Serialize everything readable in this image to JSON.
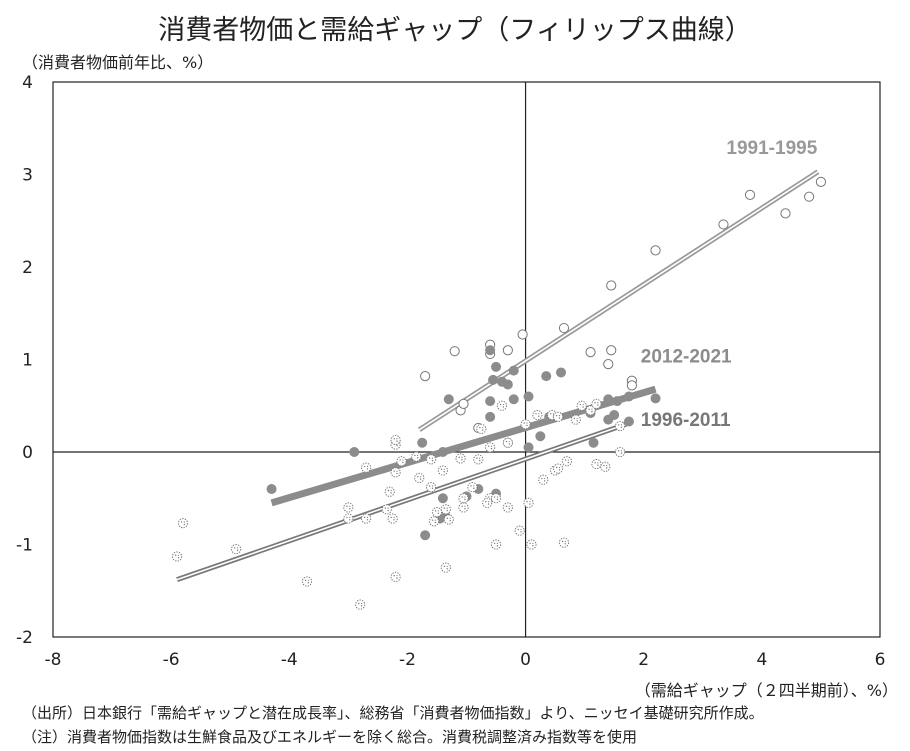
{
  "chart_data": {
    "type": "scatter",
    "title": "消費者物価と需給ギャップ（フィリップス曲線）",
    "ylabel": "（消費者物価前年比、%）",
    "xlabel": "（需給ギャップ（２四半期前）、%）",
    "xlim": [
      -8,
      6
    ],
    "ylim": [
      -2,
      4
    ],
    "xticks": [
      "-8",
      "-6",
      "-4",
      "-2",
      "0",
      "2",
      "4",
      "6"
    ],
    "yticks": [
      "-2",
      "-1",
      "0",
      "1",
      "2",
      "3",
      "4"
    ],
    "grid": false,
    "series": [
      {
        "name": "1991-1995",
        "color": "#999999",
        "marker": "open-circle",
        "points": [
          [
            -1.7,
            0.82
          ],
          [
            -1.2,
            1.09
          ],
          [
            -0.6,
            1.16
          ],
          [
            -0.6,
            1.06
          ],
          [
            -0.3,
            1.1
          ],
          [
            -0.05,
            1.27
          ],
          [
            0.65,
            1.34
          ],
          [
            -1.1,
            0.45
          ],
          [
            -1.05,
            0.52
          ],
          [
            1.45,
            1.8
          ],
          [
            2.2,
            2.18
          ],
          [
            3.35,
            2.46
          ],
          [
            3.8,
            2.78
          ],
          [
            4.4,
            2.58
          ],
          [
            4.8,
            2.76
          ],
          [
            5.0,
            2.92
          ],
          [
            1.1,
            1.08
          ],
          [
            1.45,
            1.1
          ],
          [
            1.4,
            0.95
          ],
          [
            1.8,
            0.77
          ],
          [
            1.8,
            0.72
          ],
          [
            -0.8,
            0.26
          ]
        ],
        "trend": [
          [
            -1.8,
            0.24
          ],
          [
            4.95,
            3.03
          ]
        ],
        "trend_style": "double"
      },
      {
        "name": "2012-2021",
        "color": "#8c8c8c",
        "marker": "filled-circle",
        "points": [
          [
            -4.3,
            -0.4
          ],
          [
            -2.9,
            0.0
          ],
          [
            -1.75,
            0.1
          ],
          [
            -0.5,
            0.92
          ],
          [
            -0.55,
            0.78
          ],
          [
            -0.4,
            0.76
          ],
          [
            -0.3,
            0.73
          ],
          [
            -0.2,
            0.88
          ],
          [
            -0.6,
            1.1
          ],
          [
            0.35,
            0.82
          ],
          [
            0.6,
            0.86
          ],
          [
            -0.2,
            0.57
          ],
          [
            -0.6,
            0.55
          ],
          [
            0.05,
            0.6
          ],
          [
            -1.3,
            0.57
          ],
          [
            -0.6,
            0.38
          ],
          [
            0.4,
            0.38
          ],
          [
            1.1,
            0.42
          ],
          [
            1.4,
            0.35
          ],
          [
            1.4,
            0.57
          ],
          [
            1.55,
            0.55
          ],
          [
            1.75,
            0.6
          ],
          [
            1.5,
            0.4
          ],
          [
            2.2,
            0.58
          ],
          [
            1.75,
            0.33
          ],
          [
            1.15,
            0.1
          ],
          [
            0.25,
            0.17
          ],
          [
            0.05,
            0.05
          ],
          [
            -0.3,
            0.1
          ],
          [
            -1.4,
            0.0
          ],
          [
            -0.5,
            -0.45
          ],
          [
            -1.0,
            -0.48
          ],
          [
            -1.35,
            -0.7
          ],
          [
            -1.45,
            -0.72
          ],
          [
            -1.7,
            -0.9
          ],
          [
            -1.4,
            -0.5
          ],
          [
            -0.8,
            -0.4
          ]
        ],
        "trend": [
          [
            -4.3,
            -0.55
          ],
          [
            2.2,
            0.68
          ]
        ],
        "trend_style": "thick"
      },
      {
        "name": "1996-2011",
        "color": "#777777",
        "marker": "dotted-circle",
        "points": [
          [
            -5.8,
            -0.77
          ],
          [
            -5.9,
            -1.13
          ],
          [
            -4.9,
            -1.05
          ],
          [
            -3.7,
            -1.4
          ],
          [
            -2.8,
            -1.65
          ],
          [
            -2.2,
            -1.35
          ],
          [
            -3.0,
            -0.6
          ],
          [
            -3.0,
            -0.72
          ],
          [
            -2.7,
            -0.72
          ],
          [
            -2.35,
            -0.62
          ],
          [
            -2.25,
            -0.72
          ],
          [
            -2.3,
            -0.43
          ],
          [
            -2.2,
            -0.22
          ],
          [
            -2.7,
            -0.17
          ],
          [
            -2.2,
            0.08
          ],
          [
            -2.2,
            0.13
          ],
          [
            -1.6,
            -0.08
          ],
          [
            -1.4,
            -0.2
          ],
          [
            -1.8,
            -0.28
          ],
          [
            -1.6,
            -0.38
          ],
          [
            -1.1,
            -0.07
          ],
          [
            -0.8,
            -0.08
          ],
          [
            -0.9,
            -0.38
          ],
          [
            -0.6,
            -0.5
          ],
          [
            -0.65,
            -0.55
          ],
          [
            -0.5,
            -1.0
          ],
          [
            -0.1,
            -0.85
          ],
          [
            0.1,
            -1.0
          ],
          [
            0.65,
            -0.98
          ],
          [
            -1.35,
            -0.62
          ],
          [
            -1.5,
            -0.65
          ],
          [
            -1.3,
            -0.73
          ],
          [
            -1.55,
            -0.75
          ],
          [
            -1.05,
            -0.5
          ],
          [
            -1.05,
            -0.6
          ],
          [
            -0.5,
            -0.5
          ],
          [
            -0.3,
            -0.6
          ],
          [
            0.05,
            -0.55
          ],
          [
            0.3,
            -0.3
          ],
          [
            0.5,
            -0.2
          ],
          [
            0.55,
            -0.18
          ],
          [
            0.7,
            -0.1
          ],
          [
            1.2,
            -0.13
          ],
          [
            1.35,
            -0.16
          ],
          [
            1.6,
            0.0
          ],
          [
            1.6,
            0.28
          ],
          [
            -0.4,
            0.5
          ],
          [
            0.2,
            0.4
          ],
          [
            0.45,
            0.4
          ],
          [
            0.55,
            0.38
          ],
          [
            0.85,
            0.35
          ],
          [
            0.95,
            0.5
          ],
          [
            1.1,
            0.45
          ],
          [
            1.2,
            0.52
          ],
          [
            -0.6,
            0.05
          ],
          [
            -0.3,
            0.1
          ],
          [
            0.0,
            0.3
          ],
          [
            -0.75,
            0.25
          ],
          [
            -1.35,
            -1.25
          ],
          [
            -2.1,
            -0.1
          ],
          [
            -1.85,
            -0.05
          ]
        ],
        "trend": [
          [
            -5.9,
            -1.38
          ],
          [
            1.7,
            0.3
          ]
        ],
        "trend_style": "double"
      }
    ],
    "labels": [
      {
        "series": "1991-1995",
        "text": "1991-1995"
      },
      {
        "series": "2012-2021",
        "text": "2012-2021"
      },
      {
        "series": "1996-2011",
        "text": "1996-2011"
      }
    ]
  },
  "notes": {
    "source": "（出所）日本銀行「需給ギャップと潜在成長率」、総務省「消費者物価指数」より、ニッセイ基礎研究所作成。",
    "note": "（注）消費者物価指数は生鮮食品及びエネルギーを除く総合。消費税調整済み指数等を使用"
  }
}
